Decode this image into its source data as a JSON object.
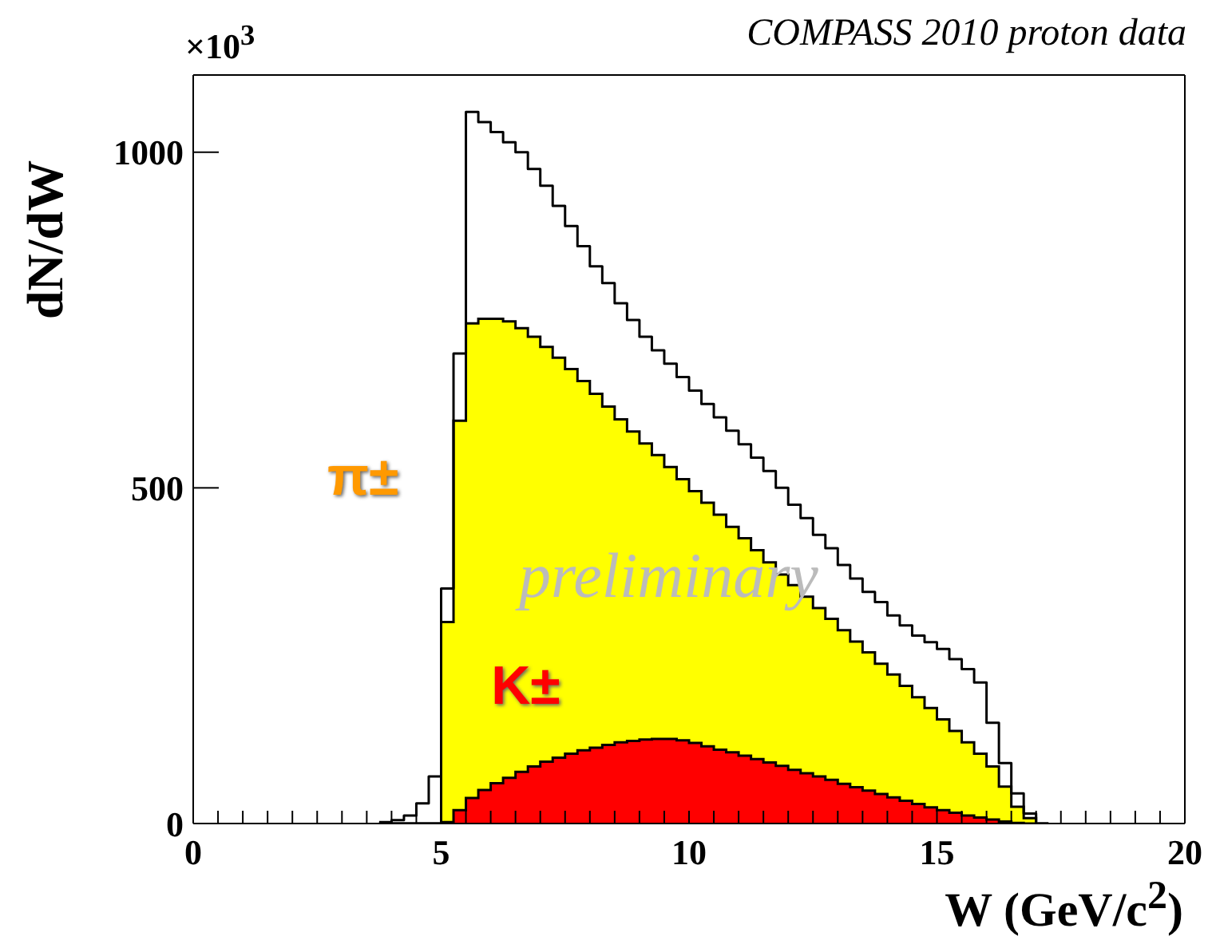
{
  "chart_data": {
    "type": "histogram",
    "title": "COMPASS 2010 proton data",
    "xlabel": "W (GeV/c$^{2}$)",
    "ylabel": "dN/dW",
    "annotations": [
      "×10$^{3}$",
      "preliminary"
    ],
    "bins": [
      3.75,
      4,
      4.25,
      4.5,
      4.75,
      5,
      5.25,
      5.5,
      5.75,
      6,
      6.25,
      6.5,
      6.75,
      7,
      7.25,
      7.5,
      7.75,
      8,
      8.25,
      8.5,
      8.75,
      9,
      9.25,
      9.5,
      9.75,
      10,
      10.25,
      10.5,
      10.75,
      11,
      11.25,
      11.5,
      11.75,
      12,
      12.25,
      12.5,
      12.75,
      13,
      13.25,
      13.5,
      13.75,
      14,
      14.25,
      14.5,
      14.75,
      15,
      15.25,
      15.5,
      15.75,
      16,
      16.25,
      16.5,
      16.75,
      17,
      17.25
    ],
    "series": [
      {
        "type": "step",
        "color": "#000000",
        "x": [
          3.75,
          4,
          4.25,
          4.5,
          4.75,
          5,
          5.25,
          5.5,
          5.75,
          6,
          6.25,
          6.5,
          6.75,
          7,
          7.25,
          7.5,
          7.75,
          8,
          8.25,
          8.5,
          8.75,
          9,
          9.25,
          9.5,
          9.75,
          10,
          10.25,
          10.5,
          10.75,
          11,
          11.25,
          11.5,
          11.75,
          12,
          12.25,
          12.5,
          12.75,
          13,
          13.25,
          13.5,
          13.75,
          14,
          14.25,
          14.5,
          14.75,
          15,
          15.25,
          15.5,
          15.75,
          16,
          16.25,
          16.5,
          16.75,
          17
        ],
        "values": [
          2,
          5,
          12,
          30,
          70,
          350,
          700,
          1060,
          1045,
          1030,
          1015,
          1000,
          975,
          950,
          920,
          890,
          860,
          830,
          805,
          775,
          750,
          725,
          705,
          685,
          665,
          645,
          625,
          605,
          585,
          565,
          545,
          525,
          500,
          475,
          455,
          430,
          410,
          385,
          365,
          345,
          330,
          310,
          295,
          280,
          270,
          260,
          245,
          230,
          210,
          150,
          90,
          45,
          15,
          2
        ]
      },
      {
        "name": "π±",
        "color": "#ffff00",
        "values": [
          0,
          0,
          0,
          0,
          0,
          300,
          600,
          745,
          752,
          752,
          748,
          738,
          725,
          710,
          694,
          677,
          659,
          640,
          621,
          602,
          584,
          566,
          549,
          531,
          513,
          495,
          478,
          460,
          442,
          425,
          407,
          389,
          371,
          355,
          338,
          321,
          305,
          288,
          271,
          255,
          238,
          222,
          205,
          188,
          172,
          155,
          138,
          121,
          104,
          85,
          55,
          25,
          8,
          0
        ]
      },
      {
        "name": "K±",
        "color": "#ff0000",
        "values": [
          0,
          0,
          0,
          0,
          0,
          2,
          20,
          38,
          50,
          60,
          68,
          77,
          85,
          92,
          98,
          104,
          109,
          113,
          117,
          121,
          123,
          125,
          126,
          126,
          124,
          120,
          115,
          110,
          106,
          101,
          96,
          91,
          86,
          80,
          75,
          70,
          65,
          59,
          54,
          49,
          44,
          39,
          34,
          29,
          24,
          20,
          16,
          12,
          9,
          6,
          3,
          1,
          0,
          0
        ]
      }
    ],
    "xlim": [
      0,
      20
    ],
    "xticks": [
      0,
      {
        "value": 0.5,
        "label": null
      },
      {
        "value": 1,
        "label": null
      },
      {
        "value": 1.5,
        "label": null
      },
      {
        "value": 2,
        "label": null
      },
      {
        "value": 2.5,
        "label": null
      },
      {
        "value": 3,
        "label": null
      },
      {
        "value": 3.5,
        "label": null
      },
      {
        "value": 4,
        "label": null
      },
      {
        "value": 4.5,
        "label": null
      },
      5,
      {
        "value": 5.5,
        "label": null
      },
      {
        "value": 6,
        "label": null
      },
      {
        "value": 6.5,
        "label": null
      },
      {
        "value": 7,
        "label": null
      },
      {
        "value": 7.5,
        "label": null
      },
      {
        "value": 8,
        "label": null
      },
      {
        "value": 8.5,
        "label": null
      },
      {
        "value": 9,
        "label": null
      },
      {
        "value": 9.5,
        "label": null
      },
      10,
      {
        "value": 10.5,
        "label": null
      },
      {
        "value": 11,
        "label": null
      },
      {
        "value": 11.5,
        "label": null
      },
      {
        "value": 12,
        "label": null
      },
      {
        "value": 12.5,
        "label": null
      },
      {
        "value": 13,
        "label": null
      },
      {
        "value": 13.5,
        "label": null
      },
      {
        "value": 14,
        "label": null
      },
      {
        "value": 14.5,
        "label": null
      },
      15,
      {
        "value": 15.5,
        "label": null
      },
      {
        "value": 16,
        "label": null
      },
      {
        "value": 16.5,
        "label": null
      },
      {
        "value": 17,
        "label": null
      },
      {
        "value": 17.5,
        "label": null
      },
      {
        "value": 18,
        "label": null
      },
      {
        "value": 18.5,
        "label": null
      },
      {
        "value": 19,
        "label": null
      },
      {
        "value": 19.5,
        "label": null
      },
      20
    ],
    "ylim": [
      0,
      1115
    ],
    "yticks": [
      0,
      500,
      1000
    ],
    "grid": false
  }
}
